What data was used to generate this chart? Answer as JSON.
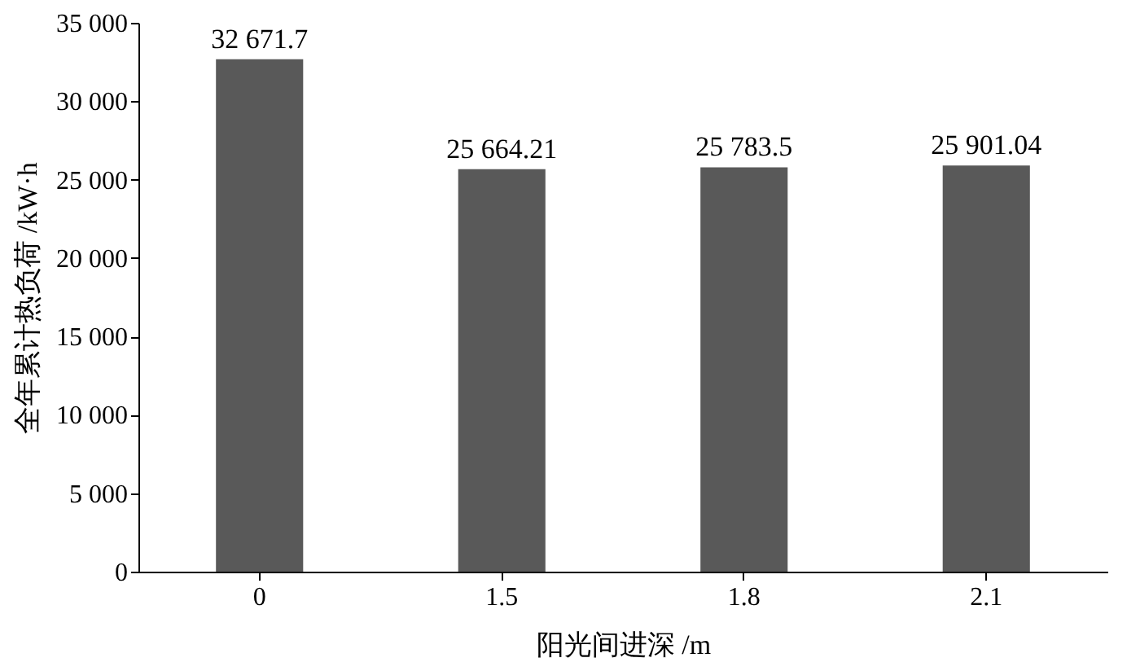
{
  "chart_data": {
    "type": "bar",
    "xlabel": "阳光间进深 /m",
    "ylabel": "全年累计热负荷 /kW·h",
    "categories": [
      "0",
      "1.5",
      "1.8",
      "2.1"
    ],
    "values": [
      32671.7,
      25664.21,
      25783.5,
      25901.04
    ],
    "value_labels": [
      "32 671.7",
      "25 664.21",
      "25 783.5",
      "25 901.04"
    ],
    "color": "#595959",
    "ylim": [
      0,
      35000
    ],
    "yticks": [
      0,
      {
        "value": 5000,
        "label": "5 000"
      },
      {
        "value": 10000,
        "label": "10 000"
      },
      {
        "value": 15000,
        "label": "15 000"
      },
      {
        "value": 20000,
        "label": "20 000"
      },
      {
        "value": 25000,
        "label": "25 000"
      },
      {
        "value": 30000,
        "label": "30 000"
      },
      {
        "value": 35000,
        "label": "35 000"
      }
    ],
    "grid": false
  }
}
